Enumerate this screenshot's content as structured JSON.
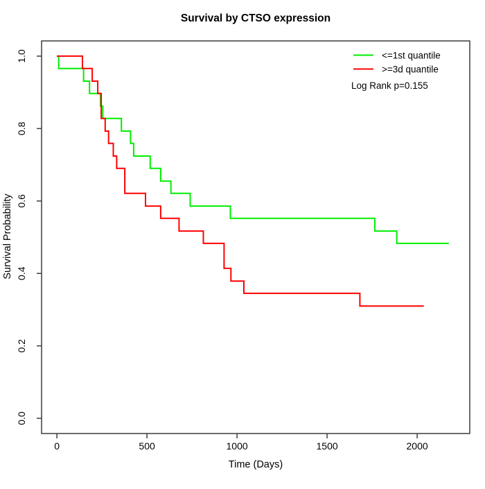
{
  "chart_data": {
    "type": "line",
    "subtype": "kaplan-meier-step",
    "title": "Survival by CTSO expression",
    "xlabel": "Time (Days)",
    "ylabel": "Survival Probability",
    "x_ticks": [
      0,
      500,
      1000,
      1500,
      2000
    ],
    "x_tick_labels": [
      "0",
      "500",
      "1000",
      "1500",
      "2000"
    ],
    "y_ticks": [
      0.0,
      0.2,
      0.4,
      0.6,
      0.8,
      1.0
    ],
    "y_tick_labels": [
      "0.0",
      "0.2",
      "0.4",
      "0.6",
      "0.8",
      "1.0"
    ],
    "xlim": [
      -85,
      2292
    ],
    "ylim": [
      -0.042,
      1.042
    ],
    "grid": false,
    "legend_position": "top-right",
    "annotation": "Log Rank p=0.155",
    "axis_color": "#3c3c3c",
    "series": [
      {
        "name": "<=1st quantile",
        "color": "#00ee00",
        "end_time": 2176,
        "points": [
          [
            0,
            1.0
          ],
          [
            10,
            0.966
          ],
          [
            148,
            0.931
          ],
          [
            181,
            0.897
          ],
          [
            242,
            0.862
          ],
          [
            255,
            0.828
          ],
          [
            358,
            0.793
          ],
          [
            409,
            0.759
          ],
          [
            426,
            0.724
          ],
          [
            518,
            0.69
          ],
          [
            576,
            0.655
          ],
          [
            633,
            0.621
          ],
          [
            740,
            0.586
          ],
          [
            963,
            0.552
          ],
          [
            1765,
            0.517
          ],
          [
            1887,
            0.483
          ]
        ]
      },
      {
        "name": ">=3d quantile",
        "color": "#ff0000",
        "end_time": 2037,
        "points": [
          [
            0,
            1.0
          ],
          [
            142,
            0.966
          ],
          [
            196,
            0.931
          ],
          [
            227,
            0.897
          ],
          [
            246,
            0.828
          ],
          [
            268,
            0.793
          ],
          [
            287,
            0.759
          ],
          [
            313,
            0.724
          ],
          [
            332,
            0.69
          ],
          [
            377,
            0.621
          ],
          [
            492,
            0.586
          ],
          [
            576,
            0.552
          ],
          [
            678,
            0.517
          ],
          [
            813,
            0.483
          ],
          [
            928,
            0.414
          ],
          [
            966,
            0.379
          ],
          [
            1038,
            0.345
          ],
          [
            1682,
            0.31
          ]
        ]
      }
    ]
  }
}
